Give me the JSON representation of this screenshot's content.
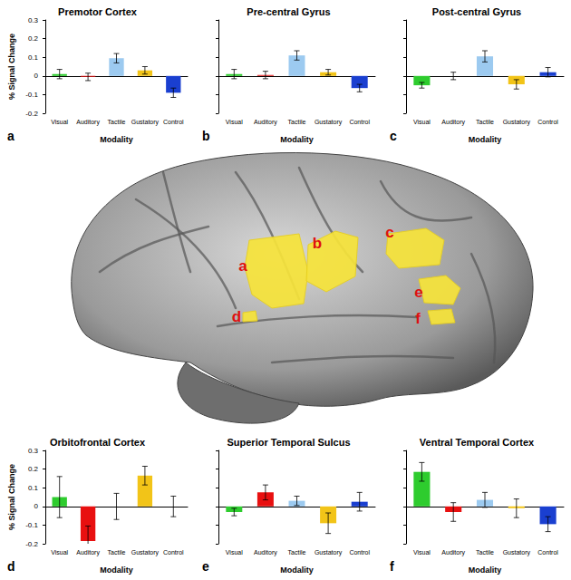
{
  "chart_data": [
    {
      "type": "bar",
      "title": "Premotor Cortex",
      "panel_label": "a",
      "x_label": "Modality",
      "y_label": "% Signal Change",
      "categories": [
        "Visual",
        "Auditory",
        "Tactile",
        "Gustatory",
        "Control"
      ],
      "values": [
        0.01,
        -0.005,
        0.095,
        0.03,
        -0.09
      ],
      "errors": [
        0.025,
        0.02,
        0.025,
        0.02,
        0.025
      ],
      "colors": [
        "#2ecc2e",
        "#e81010",
        "#9ccaf0",
        "#f2c418",
        "#1a3fd0"
      ],
      "ylim": [
        -0.2,
        0.3
      ],
      "yticks": [
        -0.2,
        -0.1,
        0,
        0.1,
        0.2,
        0.3
      ]
    },
    {
      "type": "bar",
      "title": "Pre-central Gyrus",
      "panel_label": "b",
      "x_label": "Modality",
      "categories": [
        "Visual",
        "Auditory",
        "Tactile",
        "Gustatory",
        "Control"
      ],
      "values": [
        0.01,
        0.005,
        0.11,
        0.02,
        -0.065
      ],
      "errors": [
        0.025,
        0.02,
        0.025,
        0.015,
        0.02
      ],
      "colors": [
        "#2ecc2e",
        "#e81010",
        "#9ccaf0",
        "#f2c418",
        "#1a3fd0"
      ],
      "ylim": [
        -0.2,
        0.3
      ],
      "yticks": [
        -0.2,
        -0.1,
        0,
        0.1,
        0.2,
        0.3
      ],
      "tick_labels": "x"
    },
    {
      "type": "bar",
      "title": "Post-central Gyrus",
      "panel_label": "c",
      "x_label": "Modality",
      "categories": [
        "Visual",
        "Auditory",
        "Tactile",
        "Gustatory",
        "Control"
      ],
      "values": [
        -0.05,
        0,
        0.105,
        -0.045,
        0.02
      ],
      "errors": [
        0.015,
        0.02,
        0.03,
        0.025,
        0.025
      ],
      "colors": [
        "#2ecc2e",
        "#e81010",
        "#9ccaf0",
        "#f2c418",
        "#1a3fd0"
      ],
      "ylim": [
        -0.2,
        0.3
      ],
      "yticks": [
        -0.2,
        -0.1,
        0,
        0.1,
        0.2,
        0.3
      ],
      "tick_labels": "x"
    },
    {
      "type": "bar",
      "title": "Orbitofrontal Cortex",
      "panel_label": "d",
      "x_label": "Modality",
      "y_label": "% Signal Change",
      "categories": [
        "Visual",
        "Auditory",
        "Tactile",
        "Gustatory",
        "Control"
      ],
      "values": [
        0.05,
        -0.185,
        0,
        0.165,
        0
      ],
      "errors": [
        0.11,
        0.08,
        0.07,
        0.05,
        0.055
      ],
      "colors": [
        "#2ecc2e",
        "#e81010",
        "#9ccaf0",
        "#f2c418",
        "#1a3fd0"
      ],
      "ylim": [
        -0.2,
        0.3
      ],
      "yticks": [
        -0.2,
        -0.1,
        0,
        0.1,
        0.2,
        0.3
      ]
    },
    {
      "type": "bar",
      "title": "Superior Temporal Sulcus",
      "panel_label": "e",
      "x_label": "Modality",
      "categories": [
        "Visual",
        "Auditory",
        "Tactile",
        "Gustatory",
        "Control"
      ],
      "values": [
        -0.03,
        0.075,
        0.03,
        -0.09,
        0.025
      ],
      "errors": [
        0.02,
        0.04,
        0.025,
        0.055,
        0.05
      ],
      "colors": [
        "#2ecc2e",
        "#e81010",
        "#9ccaf0",
        "#f2c418",
        "#1a3fd0"
      ],
      "ylim": [
        -0.2,
        0.3
      ],
      "yticks": [
        -0.2,
        -0.1,
        0,
        0.1,
        0.2,
        0.3
      ],
      "tick_labels": "x"
    },
    {
      "type": "bar",
      "title": "Ventral Temporal Cortex",
      "panel_label": "f",
      "x_label": "Modality",
      "categories": [
        "Visual",
        "Auditory",
        "Tactile",
        "Gustatory",
        "Control"
      ],
      "values": [
        0.185,
        -0.03,
        0.035,
        -0.01,
        -0.095
      ],
      "errors": [
        0.05,
        0.05,
        0.04,
        0.05,
        0.04
      ],
      "colors": [
        "#2ecc2e",
        "#e81010",
        "#9ccaf0",
        "#f2c418",
        "#1a3fd0"
      ],
      "ylim": [
        -0.2,
        0.3
      ],
      "yticks": [
        -0.2,
        -0.1,
        0,
        0.1,
        0.2,
        0.3
      ],
      "tick_labels": "x"
    }
  ],
  "brain_image": {
    "region_labels": [
      "a",
      "b",
      "c",
      "d",
      "e",
      "f"
    ]
  }
}
